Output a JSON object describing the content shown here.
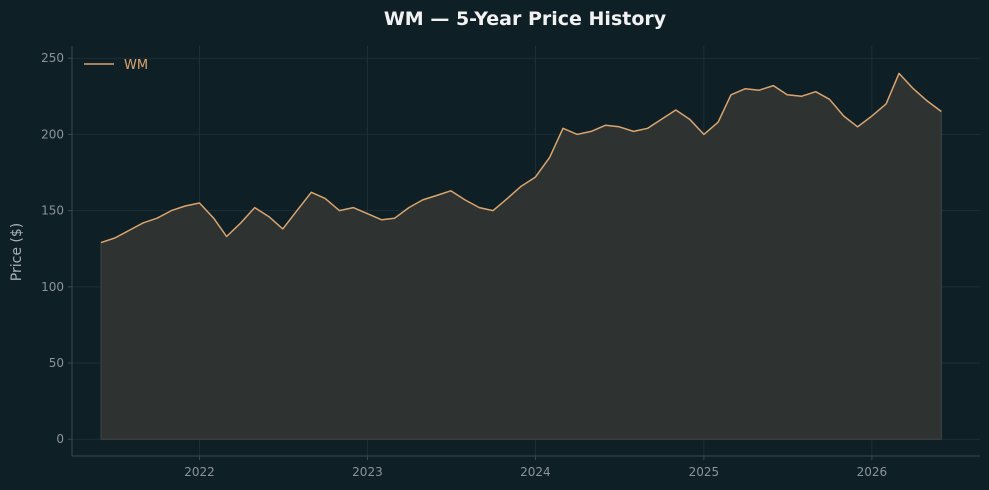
{
  "chart_data": {
    "type": "area",
    "title": "WM — 5-Year Price History",
    "xlabel": "",
    "ylabel": "Price ($)",
    "x_tick_labels": [
      "2022",
      "2023",
      "2024",
      "2025",
      "2026"
    ],
    "y_ticks": [
      0,
      50,
      100,
      150,
      200,
      250
    ],
    "xlim": [
      "2021-03-30",
      "2026-08-24"
    ],
    "ylim": [
      -11,
      258
    ],
    "grid": true,
    "legend": "top-left",
    "colors": {
      "line": "#d9a46e",
      "fill": "#2e3332",
      "background": "#0f1f26"
    },
    "series": [
      {
        "name": "WM",
        "x": [
          "2021-06-01",
          "2021-07-01",
          "2021-08-01",
          "2021-09-01",
          "2021-10-01",
          "2021-11-01",
          "2021-12-01",
          "2022-01-01",
          "2022-02-01",
          "2022-03-01",
          "2022-04-01",
          "2022-05-01",
          "2022-06-01",
          "2022-07-01",
          "2022-08-01",
          "2022-09-01",
          "2022-10-01",
          "2022-11-01",
          "2022-12-01",
          "2023-01-01",
          "2023-02-01",
          "2023-03-01",
          "2023-04-01",
          "2023-05-01",
          "2023-06-01",
          "2023-07-01",
          "2023-08-01",
          "2023-09-01",
          "2023-10-01",
          "2023-11-01",
          "2023-12-01",
          "2024-01-01",
          "2024-02-01",
          "2024-03-01",
          "2024-04-01",
          "2024-05-01",
          "2024-06-01",
          "2024-07-01",
          "2024-08-01",
          "2024-09-01",
          "2024-10-01",
          "2024-11-01",
          "2024-12-01",
          "2025-01-01",
          "2025-02-01",
          "2025-03-01",
          "2025-04-01",
          "2025-05-01",
          "2025-06-01",
          "2025-07-01",
          "2025-08-01",
          "2025-09-01",
          "2025-10-01",
          "2025-11-01",
          "2025-12-01",
          "2026-01-01",
          "2026-02-01",
          "2026-03-01",
          "2026-04-01",
          "2026-05-01",
          "2026-06-01"
        ],
        "values": [
          129,
          132,
          137,
          142,
          145,
          150,
          153,
          155,
          145,
          133,
          142,
          152,
          146,
          138,
          150,
          162,
          158,
          150,
          152,
          148,
          144,
          145,
          152,
          157,
          160,
          163,
          157,
          152,
          150,
          158,
          166,
          172,
          185,
          204,
          200,
          202,
          206,
          205,
          202,
          204,
          210,
          216,
          210,
          200,
          208,
          226,
          230,
          229,
          232,
          226,
          225,
          228,
          223,
          212,
          205,
          212,
          220,
          240,
          230,
          222,
          215
        ]
      }
    ]
  }
}
